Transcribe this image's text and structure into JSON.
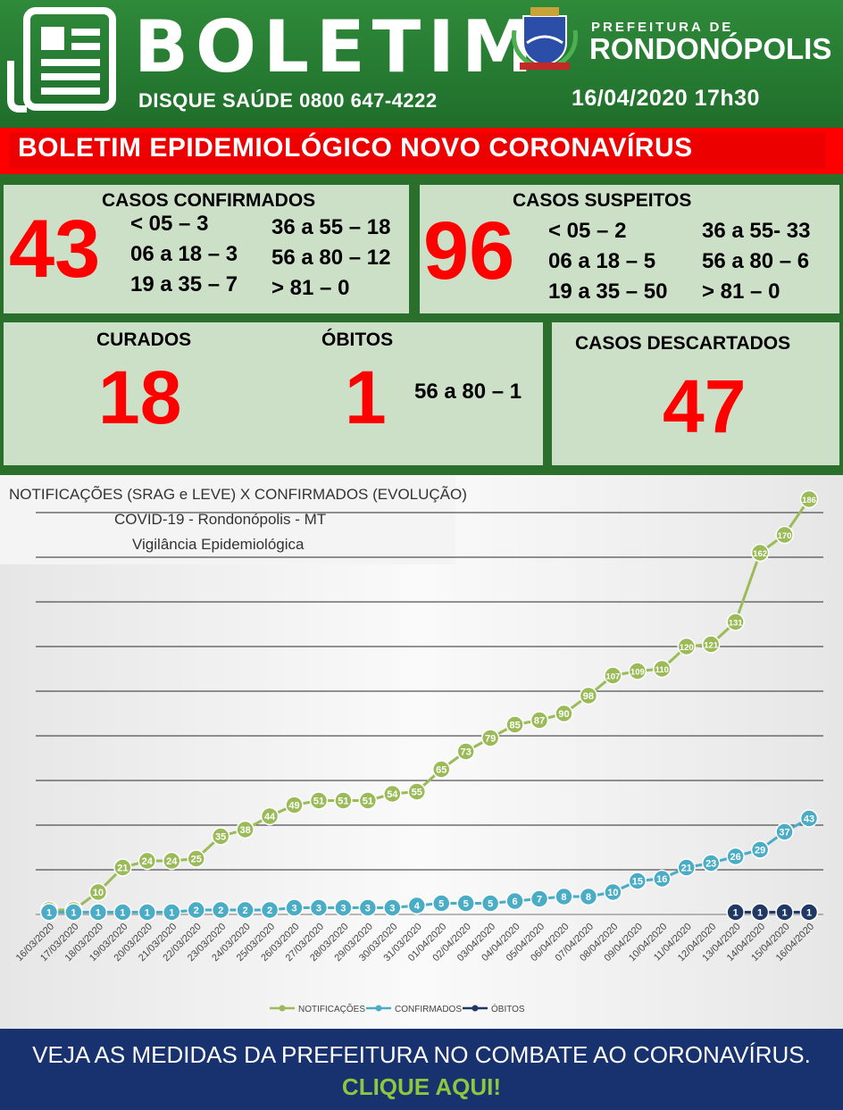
{
  "header": {
    "title": "BOLETIM",
    "disque": "DISQUE SAÚDE 0800 647-4222",
    "prefeitura_small": "PREFEITURA DE",
    "prefeitura_big": "RONDONÓPOLIS",
    "date": "16/04/2020  17h30"
  },
  "banner": "BOLETIM EPIDEMIOLÓGICO NOVO CORONAVÍRUS",
  "confirmados": {
    "label": "CASOS  CONFIRMADOS",
    "value": "43",
    "ages": [
      "< 05 – 3",
      "06 a 18 – 3",
      "19 a 35 – 7",
      "36 a 55 – 18",
      "56 a 80 – 12",
      "> 81  –  0"
    ]
  },
  "suspeitos": {
    "label": "CASOS SUSPEITOS",
    "value": "96",
    "ages": [
      "< 05 – 2",
      "06 a 18 – 5",
      "19 a 35 – 50",
      "36 a 55- 33",
      "56 a 80 – 6",
      "> 81  –  0"
    ]
  },
  "curados": {
    "label": "CURADOS",
    "value": "18"
  },
  "obitos": {
    "label": "ÓBITOS",
    "value": "1",
    "detail": "56 a 80 – 1"
  },
  "descartados": {
    "label": "CASOS DESCARTADOS",
    "value": "47"
  },
  "chart_data": {
    "type": "line",
    "title": "NOTIFICAÇÕES (SRAG e LEVE) X CONFIRMADOS (EVOLUÇÃO)",
    "subtitle": "COVID-19 - Rondonópolis - MT",
    "subtitle2": "Vigilância Epidemiológica",
    "ylim": [
      0,
      200
    ],
    "grid": true,
    "legend_position": "bottom",
    "categories": [
      "16/03/2020",
      "17/03/2020",
      "18/03/2020",
      "19/03/2020",
      "20/03/2020",
      "21/03/2020",
      "22/03/2020",
      "23/03/2020",
      "24/03/2020",
      "25/03/2020",
      "26/03/2020",
      "27/03/2020",
      "28/03/2020",
      "29/03/2020",
      "30/03/2020",
      "31/03/2020",
      "01/04/2020",
      "02/04/2020",
      "03/04/2020",
      "04/04/2020",
      "05/04/2020",
      "06/04/2020",
      "07/04/2020",
      "08/04/2020",
      "09/04/2020",
      "10/04/2020",
      "11/04/2020",
      "12/04/2020",
      "13/04/2020",
      "14/04/2020",
      "15/04/2020",
      "16/04/2020"
    ],
    "series": [
      {
        "name": "NOTIFICAÇÕES",
        "color": "#9bbb59",
        "values": [
          2,
          2,
          10,
          21,
          24,
          24,
          25,
          35,
          38,
          44,
          49,
          51,
          51,
          51,
          54,
          55,
          65,
          73,
          79,
          85,
          87,
          90,
          98,
          107,
          109,
          110,
          120,
          121,
          131,
          162,
          170,
          186
        ]
      },
      {
        "name": "CONFIRMADOS",
        "color": "#4bacc6",
        "values": [
          1,
          1,
          1,
          1,
          1,
          1,
          2,
          2,
          2,
          2,
          3,
          3,
          3,
          3,
          3,
          4,
          5,
          5,
          5,
          6,
          7,
          8,
          8,
          10,
          15,
          16,
          21,
          23,
          26,
          29,
          37,
          43
        ]
      },
      {
        "name": "ÓBITOS",
        "color": "#1f3864",
        "values": [
          null,
          null,
          null,
          null,
          null,
          null,
          null,
          null,
          null,
          null,
          null,
          null,
          null,
          null,
          null,
          null,
          null,
          null,
          null,
          null,
          null,
          null,
          null,
          null,
          null,
          null,
          null,
          null,
          1,
          1,
          1,
          1
        ]
      }
    ]
  },
  "footer": {
    "line1": "VEJA AS MEDIDAS DA PREFEITURA NO COMBATE AO CORONAVÍRUS.",
    "line2": "CLIQUE AQUI!"
  }
}
